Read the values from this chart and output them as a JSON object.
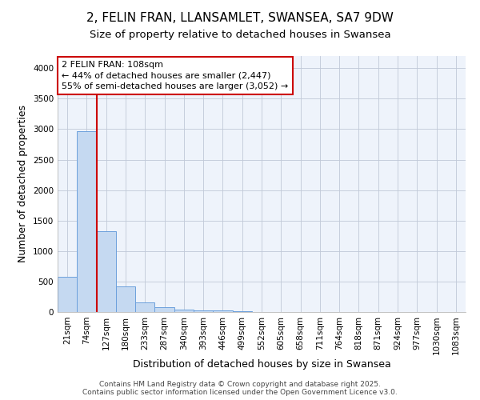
{
  "title_line1": "2, FELIN FRAN, LLANSAMLET, SWANSEA, SA7 9DW",
  "title_line2": "Size of property relative to detached houses in Swansea",
  "xlabel": "Distribution of detached houses by size in Swansea",
  "ylabel": "Number of detached properties",
  "categories": [
    "21sqm",
    "74sqm",
    "127sqm",
    "180sqm",
    "233sqm",
    "287sqm",
    "340sqm",
    "393sqm",
    "446sqm",
    "499sqm",
    "552sqm",
    "605sqm",
    "658sqm",
    "711sqm",
    "764sqm",
    "818sqm",
    "871sqm",
    "924sqm",
    "977sqm",
    "1030sqm",
    "1083sqm"
  ],
  "values": [
    580,
    2970,
    1320,
    420,
    155,
    80,
    45,
    25,
    20,
    10,
    0,
    0,
    0,
    0,
    0,
    0,
    0,
    0,
    0,
    0,
    0
  ],
  "bar_color": "#c5d9f1",
  "bar_edge_color": "#6ca0dc",
  "background_color": "#ffffff",
  "plot_bg_color": "#eef3fb",
  "grid_color": "#c0c8d8",
  "vline_x": 1.5,
  "vline_color": "#cc0000",
  "annotation_text": "2 FELIN FRAN: 108sqm\n← 44% of detached houses are smaller (2,447)\n55% of semi-detached houses are larger (3,052) →",
  "annotation_box_color": "#ffffff",
  "annotation_box_edge": "#cc0000",
  "ylim": [
    0,
    4200
  ],
  "yticks": [
    0,
    500,
    1000,
    1500,
    2000,
    2500,
    3000,
    3500,
    4000
  ],
  "footer_text": "Contains HM Land Registry data © Crown copyright and database right 2025.\nContains public sector information licensed under the Open Government Licence v3.0.",
  "title_fontsize": 11,
  "subtitle_fontsize": 9.5,
  "axis_label_fontsize": 9,
  "tick_fontsize": 7.5,
  "annotation_fontsize": 8,
  "footer_fontsize": 6.5
}
